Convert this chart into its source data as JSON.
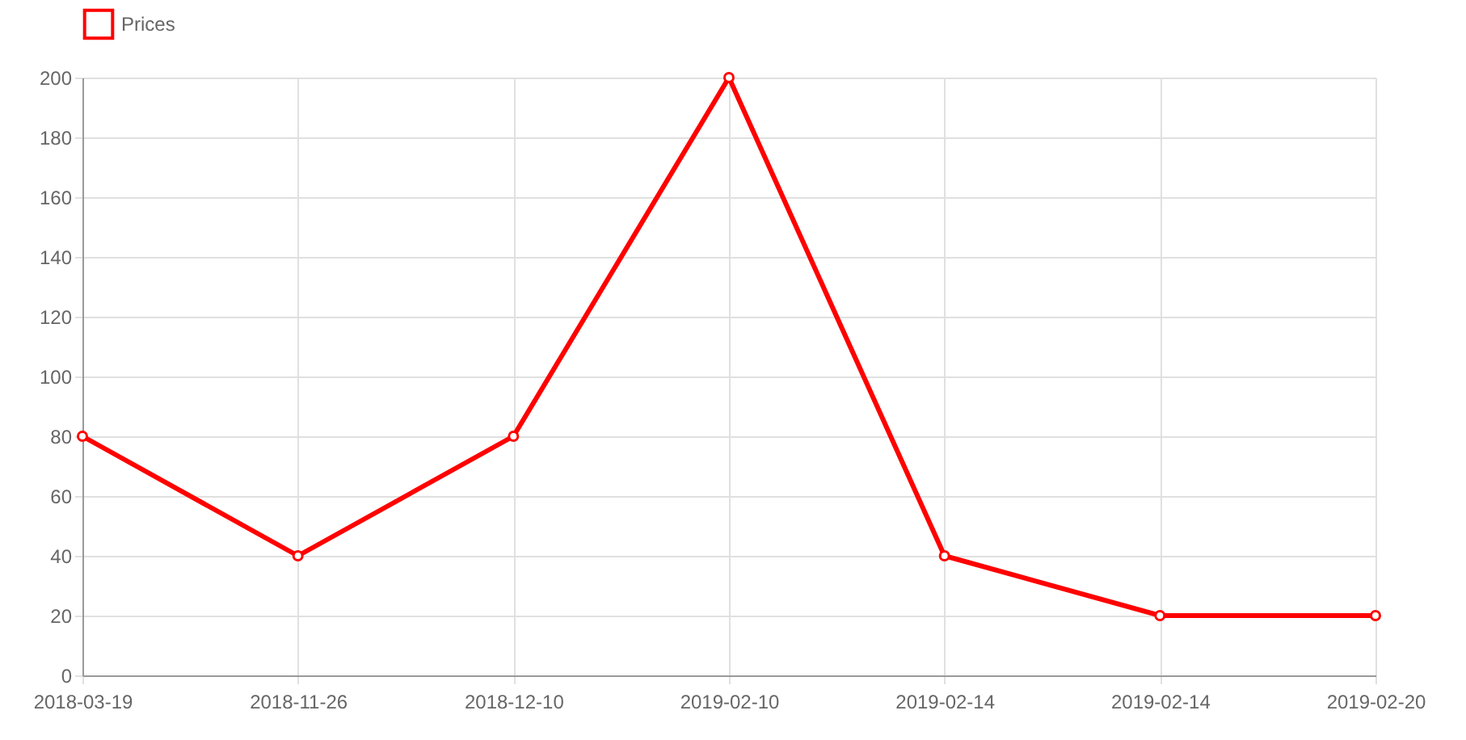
{
  "chart_data": {
    "type": "line",
    "categories": [
      "2018-03-19",
      "2018-11-26",
      "2018-12-10",
      "2019-02-10",
      "2019-02-14",
      "2019-02-14",
      "2019-02-20"
    ],
    "series": [
      {
        "name": "Prices",
        "color": "#ff0000",
        "values": [
          80,
          40,
          80,
          200,
          40,
          20,
          20
        ]
      }
    ],
    "ylim": [
      0,
      200
    ],
    "yticks": [
      0,
      20,
      40,
      60,
      80,
      100,
      120,
      140,
      160,
      180,
      200
    ],
    "grid": true,
    "legend": "top",
    "marker": "circle",
    "line_style": "solid"
  }
}
